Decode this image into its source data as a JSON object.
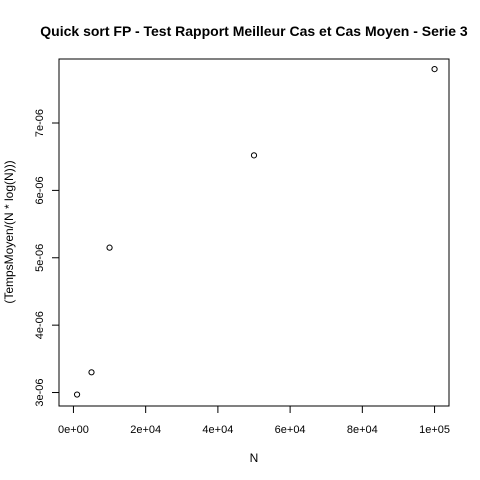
{
  "chart_data": {
    "type": "scatter",
    "title": "Quick sort FP - Test Rapport Meilleur Cas et Cas Moyen - Serie 3",
    "xlabel": "N",
    "ylabel": "(TempsMoyen/(N * log(N)))",
    "xlim": [
      -4000,
      104000
    ],
    "ylim": [
      2.8e-06,
      7.95e-06
    ],
    "x_ticks": [
      0,
      20000,
      40000,
      60000,
      80000,
      100000
    ],
    "x_tick_labels": [
      "0e+00",
      "2e+04",
      "4e+04",
      "6e+04",
      "8e+04",
      "1e+05"
    ],
    "y_ticks": [
      3e-06,
      4e-06,
      5e-06,
      6e-06,
      7e-06
    ],
    "y_tick_labels": [
      "3e-06",
      "4e-06",
      "5e-06",
      "6e-06",
      "7e-06"
    ],
    "grid": false,
    "points": [
      {
        "x": 1000,
        "y": 2.97e-06
      },
      {
        "x": 5000,
        "y": 3.3e-06
      },
      {
        "x": 10000,
        "y": 5.15e-06
      },
      {
        "x": 50000,
        "y": 6.52e-06
      },
      {
        "x": 100000,
        "y": 7.8e-06
      }
    ]
  }
}
